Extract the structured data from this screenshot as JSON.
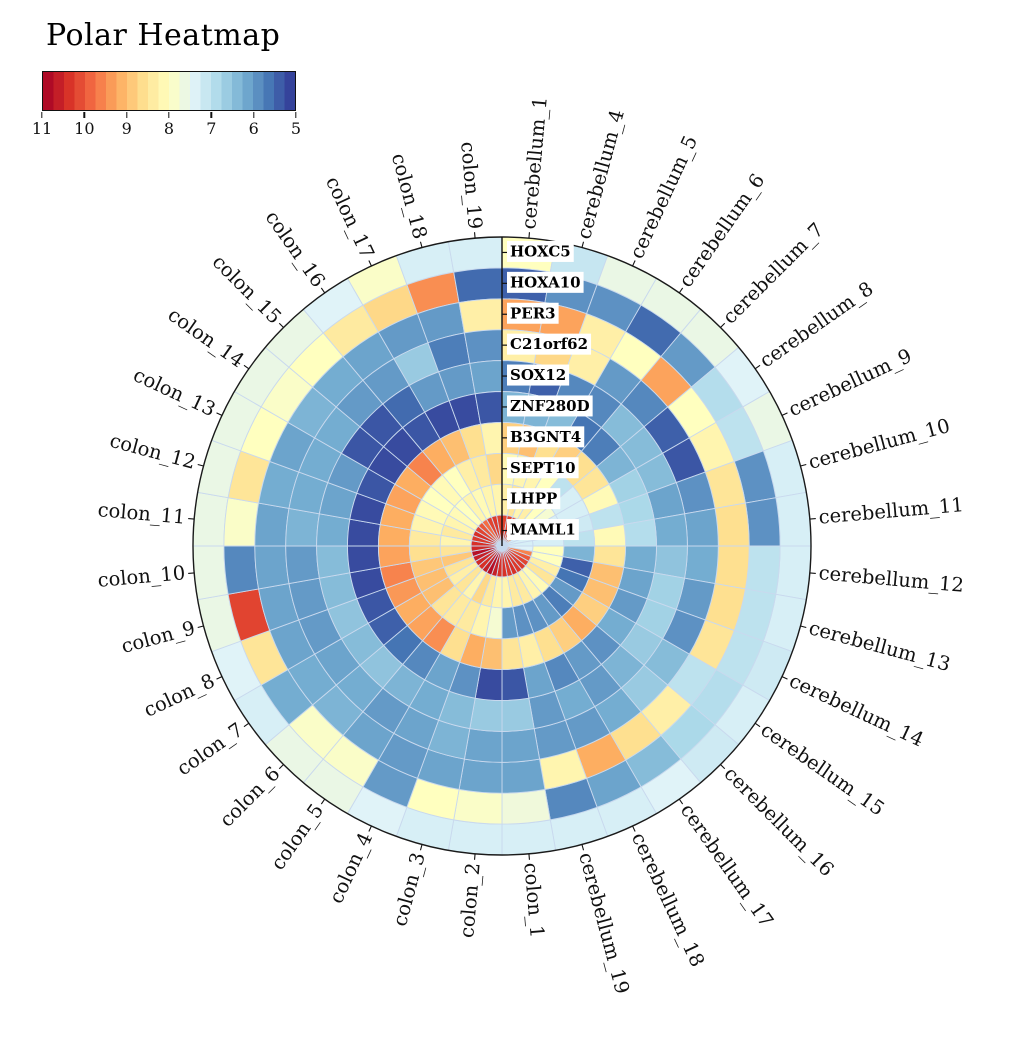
{
  "title": "Polar Heatmap",
  "legend": {
    "value_min": 5,
    "value_max": 11,
    "ticks": [
      "11",
      "10",
      "9",
      "8",
      "7",
      "6",
      "5"
    ],
    "orientation": "high-values-left",
    "colormap_name": "RdYlBu",
    "colormap_anchors": [
      "#a50026",
      "#d73027",
      "#f46d43",
      "#fdae61",
      "#fee090",
      "#ffffbf",
      "#e0f3f8",
      "#abd9e9",
      "#74add1",
      "#4575b4",
      "#313695"
    ],
    "segments": 24
  },
  "chart_data": {
    "type": "heatmap",
    "subtype": "polar",
    "title": "Polar Heatmap",
    "rings_order": "outermost_to_innermost",
    "sectors_order": "clockwise_from_top",
    "sector_span_deg": 10,
    "rings": [
      "HOXC5",
      "HOXA10",
      "PER3",
      "C21orf62",
      "SOX12",
      "ZNF280D",
      "B3GNT4",
      "SEPT10",
      "LHPP",
      "MAML1"
    ],
    "sectors": [
      "cerebellum_1",
      "cerebellum_4",
      "cerebellum_5",
      "cerebellum_6",
      "cerebellum_7",
      "cerebellum_8",
      "cerebellum_9",
      "cerebellum_10",
      "cerebellum_11",
      "cerebellum_12",
      "cerebellum_13",
      "cerebellum_14",
      "cerebellum_15",
      "cerebellum_16",
      "cerebellum_17",
      "cerebellum_18",
      "cerebellum_19",
      "colon_1",
      "colon_2",
      "colon_3",
      "colon_4",
      "colon_5",
      "colon_6",
      "colon_7",
      "colon_8",
      "colon_9",
      "colon_10",
      "colon_11",
      "colon_12",
      "colon_13",
      "colon_14",
      "colon_15",
      "colon_16",
      "colon_17",
      "colon_18",
      "colon_19"
    ],
    "value_range": [
      5,
      11
    ],
    "values": [
      [
        8.0,
        7.1,
        7.6,
        7.6,
        7.6,
        7.4,
        7.6,
        7.3,
        7.3,
        7.3,
        7.3,
        7.2,
        7.3,
        7.2,
        7.4,
        7.3,
        7.3,
        7.3,
        7.3,
        7.3,
        7.4,
        7.6,
        7.6,
        7.3,
        7.4,
        7.6,
        7.6,
        7.6,
        7.6,
        7.6,
        7.6,
        7.6,
        7.4,
        7.9,
        7.3,
        7.3
      ],
      [
        5.4,
        5.9,
        5.9,
        5.5,
        6.0,
        6.9,
        7.0,
        5.9,
        5.9,
        7.0,
        7.0,
        7.0,
        6.9,
        6.8,
        6.4,
        6.1,
        5.8,
        7.7,
        7.9,
        8.0,
        6.0,
        7.9,
        7.9,
        6.2,
        8.5,
        10.2,
        5.8,
        7.9,
        8.5,
        8.0,
        7.9,
        8.0,
        8.4,
        8.7,
        9.5,
        5.5
      ],
      [
        9.3,
        9.3,
        8.3,
        8.0,
        9.3,
        8.0,
        8.2,
        8.5,
        8.6,
        8.6,
        8.6,
        8.5,
        7.0,
        8.3,
        8.6,
        9.2,
        8.2,
        6.1,
        6.1,
        6.1,
        6.0,
        6.1,
        6.3,
        6.2,
        6.1,
        6.1,
        6.1,
        6.1,
        6.2,
        6.1,
        6.3,
        6.2,
        6.1,
        6.0,
        6.0,
        8.3
      ],
      [
        8.3,
        8.7,
        8.3,
        6.0,
        5.8,
        5.4,
        5.3,
        5.9,
        6.1,
        6.2,
        6.0,
        5.9,
        6.4,
        6.6,
        6.2,
        6.0,
        6.0,
        6.1,
        6.1,
        6.3,
        6.1,
        6.0,
        6.2,
        6.1,
        6.0,
        6.0,
        6.0,
        6.3,
        6.2,
        6.2,
        6.2,
        6.0,
        6.0,
        6.6,
        5.7,
        5.9
      ],
      [
        5.7,
        5.4,
        5.8,
        5.8,
        6.4,
        6.4,
        6.4,
        6.1,
        6.2,
        6.5,
        6.7,
        6.7,
        6.6,
        6.3,
        6.0,
        6.2,
        6.0,
        6.6,
        6.6,
        6.4,
        6.2,
        6.3,
        6.5,
        6.4,
        6.5,
        6.4,
        6.4,
        6.2,
        6.1,
        6.0,
        5.3,
        5.3,
        5.5,
        6.0,
        6.0,
        6.1
      ],
      [
        6.3,
        6.3,
        6.4,
        5.6,
        5.7,
        6.3,
        6.7,
        6.8,
        6.9,
        6.2,
        6.1,
        6.0,
        6.2,
        5.9,
        6.0,
        5.8,
        6.1,
        5.3,
        5.2,
        5.9,
        6.1,
        5.8,
        5.6,
        5.4,
        5.3,
        5.2,
        5.2,
        5.2,
        5.2,
        5.3,
        5.2,
        5.2,
        5.3,
        5.2,
        5.2,
        5.3
      ],
      [
        8.8,
        9.0,
        8.6,
        8.8,
        8.6,
        8.5,
        8.1,
        7.0,
        8.1,
        8.5,
        9.0,
        9.0,
        8.8,
        9.2,
        8.8,
        8.6,
        8.3,
        8.5,
        9.0,
        9.2,
        8.6,
        9.5,
        9.3,
        9.2,
        9.4,
        9.6,
        9.3,
        9.2,
        9.2,
        9.3,
        9.2,
        9.6,
        9.2,
        9.0,
        8.6,
        8.2
      ],
      [
        8.1,
        8.2,
        8.2,
        8.0,
        7.0,
        7.3,
        7.3,
        7.2,
        7.0,
        6.3,
        5.4,
        5.6,
        6.0,
        5.7,
        6.0,
        5.9,
        5.9,
        6.0,
        7.8,
        8.2,
        8.4,
        8.4,
        8.5,
        9.0,
        9.0,
        8.9,
        8.6,
        8.4,
        8.2,
        8.1,
        8.0,
        8.1,
        8.0,
        8.3,
        8.4,
        8.7
      ],
      [
        8.3,
        8.5,
        8.2,
        8.3,
        8.0,
        7.8,
        7.3,
        7.3,
        7.3,
        8.0,
        8.0,
        8.3,
        8.5,
        8.1,
        8.2,
        8.4,
        8.4,
        8.2,
        8.2,
        8.4,
        8.7,
        8.2,
        8.5,
        8.3,
        8.5,
        8.9,
        8.5,
        8.2,
        8.4,
        8.2,
        8.1,
        8.0,
        8.2,
        8.1,
        8.2,
        8.2
      ],
      [
        10.2,
        10.2,
        10.0,
        9.6,
        10.2,
        9.3,
        7.3,
        7.3,
        7.3,
        7.4,
        9.6,
        10.0,
        10.2,
        10.3,
        10.3,
        10.4,
        10.3,
        10.4,
        10.4,
        10.6,
        10.8,
        10.6,
        10.4,
        10.5,
        10.6,
        10.8,
        10.5,
        10.4,
        10.3,
        10.4,
        10.2,
        10.0,
        9.8,
        10.2,
        10.3,
        10.2
      ]
    ]
  }
}
